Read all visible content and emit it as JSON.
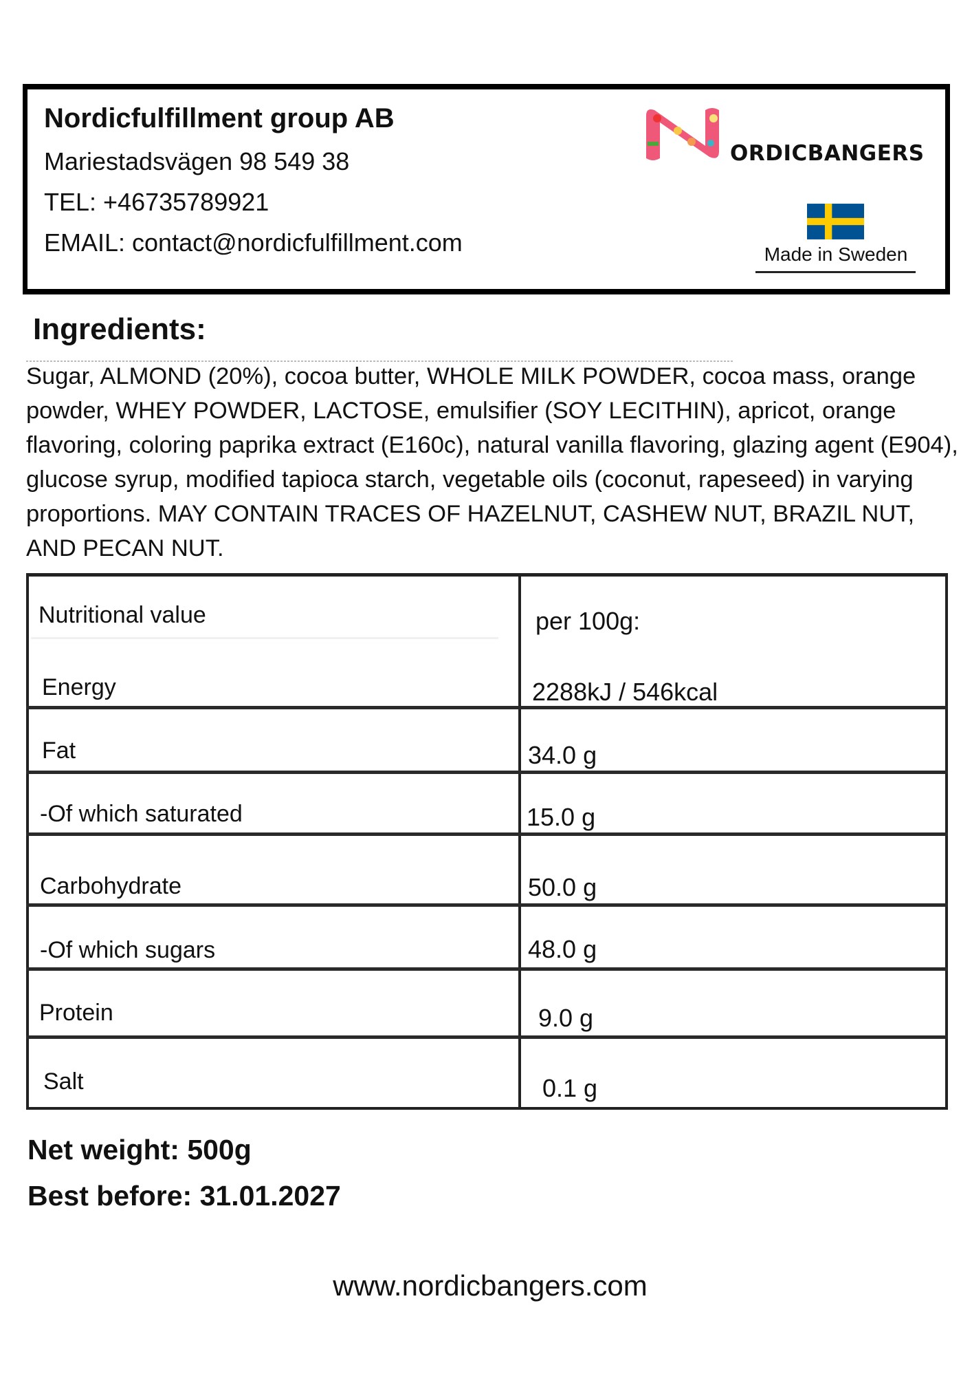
{
  "header": {
    "company": "Nordicfulfillment group AB",
    "address": "Mariestadsvägen 98 549 38",
    "tel": "TEL: +46735789921",
    "email": "EMAIL: contact@nordicfulfillment.com",
    "logo_text": "NORDICBANGERS",
    "logo_suffix": "ORDICBANGERS",
    "made_in": "Made in Sweden",
    "flag_colors": {
      "blue": "#005293",
      "yellow": "#FECB00"
    },
    "logo_color": "#f0587a"
  },
  "ingredients": {
    "title": "Ingredients:",
    "text": "Sugar, ALMOND (20%), cocoa butter, WHOLE MILK POWDER, cocoa mass, orange powder, WHEY POWDER, LACTOSE, emulsifier (SOY LECITHIN), apricot, orange flavoring, coloring paprika extract (E160c), natural vanilla flavoring, glazing agent (E904), glucose syrup, modified tapioca starch, vegetable oils (coconut, rapeseed) in varying proportions. MAY CONTAIN TRACES OF HAZELNUT, CASHEW NUT, BRAZIL NUT, AND PECAN NUT."
  },
  "nutrition": {
    "header_label": "Nutritional value",
    "header_value": "per 100g:",
    "rows": [
      {
        "label": "Energy",
        "value": "2288kJ / 546kcal"
      },
      {
        "label": "Fat",
        "value": "34.0 g"
      },
      {
        "label": "-Of which saturated",
        "value": "15.0 g"
      },
      {
        "label": "Carbohydrate",
        "value": "50.0 g"
      },
      {
        "label": "-Of which sugars",
        "value": "48.0 g"
      },
      {
        "label": "Protein",
        "value": "9.0 g"
      },
      {
        "label": "Salt",
        "value": "0.1 g"
      }
    ]
  },
  "footer": {
    "net_weight": "Net weight: 500g",
    "best_before": "Best before: 31.01.2027",
    "website": "www.nordicbangers.com"
  }
}
